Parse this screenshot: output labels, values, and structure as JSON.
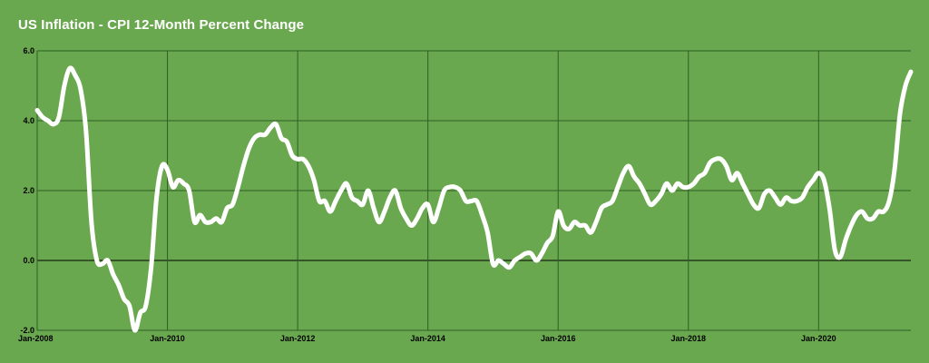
{
  "chart_data": {
    "type": "line",
    "title": "US Inflation - CPI 12-Month Percent Change",
    "xlabel": "",
    "ylabel": "",
    "ylim": [
      -2.0,
      6.0
    ],
    "xlim": [
      "2008-01",
      "2021-06"
    ],
    "grid": true,
    "legend": "none",
    "y_ticks": [
      -2.0,
      0.0,
      2.0,
      4.0,
      6.0
    ],
    "y_tick_labels": [
      "-2.0",
      "0.0",
      "2.0",
      "4.0",
      "6.0"
    ],
    "x_ticks": [
      "2008-01",
      "2010-01",
      "2012-01",
      "2014-01",
      "2016-01",
      "2018-01",
      "2020-01"
    ],
    "x_tick_labels": [
      "Jan-2008",
      "Jan-2010",
      "Jan-2012",
      "Jan-2014",
      "Jan-2016",
      "Jan-2018",
      "Jan-2020"
    ],
    "series": [
      {
        "name": "",
        "x": [
          "2008-01",
          "2008-02",
          "2008-03",
          "2008-04",
          "2008-05",
          "2008-06",
          "2008-07",
          "2008-08",
          "2008-09",
          "2008-10",
          "2008-11",
          "2008-12",
          "2009-01",
          "2009-02",
          "2009-03",
          "2009-04",
          "2009-05",
          "2009-06",
          "2009-07",
          "2009-08",
          "2009-09",
          "2009-10",
          "2009-11",
          "2009-12",
          "2010-01",
          "2010-02",
          "2010-03",
          "2010-04",
          "2010-05",
          "2010-06",
          "2010-07",
          "2010-08",
          "2010-09",
          "2010-10",
          "2010-11",
          "2010-12",
          "2011-01",
          "2011-02",
          "2011-03",
          "2011-04",
          "2011-05",
          "2011-06",
          "2011-07",
          "2011-08",
          "2011-09",
          "2011-10",
          "2011-11",
          "2011-12",
          "2012-01",
          "2012-02",
          "2012-03",
          "2012-04",
          "2012-05",
          "2012-06",
          "2012-07",
          "2012-08",
          "2012-09",
          "2012-10",
          "2012-11",
          "2012-12",
          "2013-01",
          "2013-02",
          "2013-03",
          "2013-04",
          "2013-05",
          "2013-06",
          "2013-07",
          "2013-08",
          "2013-09",
          "2013-10",
          "2013-11",
          "2013-12",
          "2014-01",
          "2014-02",
          "2014-03",
          "2014-04",
          "2014-05",
          "2014-06",
          "2014-07",
          "2014-08",
          "2014-09",
          "2014-10",
          "2014-11",
          "2014-12",
          "2015-01",
          "2015-02",
          "2015-03",
          "2015-04",
          "2015-05",
          "2015-06",
          "2015-07",
          "2015-08",
          "2015-09",
          "2015-10",
          "2015-11",
          "2015-12",
          "2016-01",
          "2016-02",
          "2016-03",
          "2016-04",
          "2016-05",
          "2016-06",
          "2016-07",
          "2016-08",
          "2016-09",
          "2016-10",
          "2016-11",
          "2016-12",
          "2017-01",
          "2017-02",
          "2017-03",
          "2017-04",
          "2017-05",
          "2017-06",
          "2017-07",
          "2017-08",
          "2017-09",
          "2017-10",
          "2017-11",
          "2017-12",
          "2018-01",
          "2018-02",
          "2018-03",
          "2018-04",
          "2018-05",
          "2018-06",
          "2018-07",
          "2018-08",
          "2018-09",
          "2018-10",
          "2018-11",
          "2018-12",
          "2019-01",
          "2019-02",
          "2019-03",
          "2019-04",
          "2019-05",
          "2019-06",
          "2019-07",
          "2019-08",
          "2019-09",
          "2019-10",
          "2019-11",
          "2019-12",
          "2020-01",
          "2020-02",
          "2020-03",
          "2020-04",
          "2020-05",
          "2020-06",
          "2020-07",
          "2020-08",
          "2020-09",
          "2020-10",
          "2020-11",
          "2020-12",
          "2021-01",
          "2021-02",
          "2021-03",
          "2021-04",
          "2021-05",
          "2021-06"
        ],
        "values": [
          4.3,
          4.1,
          4.0,
          3.9,
          4.1,
          5.0,
          5.5,
          5.3,
          4.9,
          3.7,
          1.1,
          0.0,
          -0.1,
          0.0,
          -0.4,
          -0.7,
          -1.1,
          -1.3,
          -2.0,
          -1.5,
          -1.3,
          -0.2,
          1.8,
          2.7,
          2.6,
          2.1,
          2.3,
          2.2,
          2.0,
          1.1,
          1.3,
          1.1,
          1.1,
          1.2,
          1.1,
          1.5,
          1.6,
          2.1,
          2.7,
          3.2,
          3.5,
          3.6,
          3.6,
          3.8,
          3.9,
          3.5,
          3.4,
          3.0,
          2.9,
          2.9,
          2.7,
          2.3,
          1.7,
          1.7,
          1.4,
          1.7,
          2.0,
          2.2,
          1.8,
          1.7,
          1.6,
          2.0,
          1.5,
          1.1,
          1.4,
          1.8,
          2.0,
          1.5,
          1.2,
          1.0,
          1.2,
          1.5,
          1.6,
          1.1,
          1.5,
          2.0,
          2.1,
          2.1,
          2.0,
          1.7,
          1.7,
          1.7,
          1.3,
          0.8,
          -0.1,
          0.0,
          -0.1,
          -0.2,
          0.0,
          0.1,
          0.2,
          0.2,
          0.0,
          0.2,
          0.5,
          0.7,
          1.4,
          1.0,
          0.9,
          1.1,
          1.0,
          1.0,
          0.8,
          1.1,
          1.5,
          1.6,
          1.7,
          2.1,
          2.5,
          2.7,
          2.4,
          2.2,
          1.9,
          1.6,
          1.7,
          1.9,
          2.2,
          2.0,
          2.2,
          2.1,
          2.1,
          2.2,
          2.4,
          2.5,
          2.8,
          2.9,
          2.9,
          2.7,
          2.3,
          2.5,
          2.2,
          1.9,
          1.6,
          1.5,
          1.9,
          2.0,
          1.8,
          1.6,
          1.8,
          1.7,
          1.7,
          1.8,
          2.1,
          2.3,
          2.5,
          2.3,
          1.5,
          0.3,
          0.1,
          0.6,
          1.0,
          1.3,
          1.4,
          1.2,
          1.2,
          1.4,
          1.4,
          1.7,
          2.6,
          4.2,
          5.0,
          5.4
        ]
      }
    ],
    "style": {
      "background": "#6aa84f",
      "line_color": "#ffffff",
      "grid_color": "#2f5e24",
      "zero_line_color": "#000000",
      "tick_color": "#000000"
    }
  }
}
